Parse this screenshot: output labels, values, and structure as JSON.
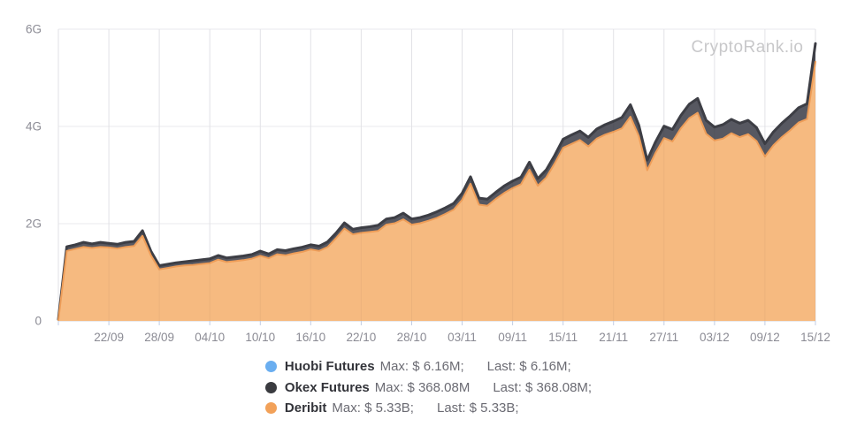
{
  "watermark": {
    "text": "CryptoRank.io"
  },
  "legend": {
    "items": [
      {
        "name": "Huobi Futures",
        "max_text": "Max: $ 6.16M;",
        "last_text": "Last: $ 6.16M;",
        "color": "#6aaef0"
      },
      {
        "name": "Okex Futures",
        "max_text": "Max: $ 368.08M",
        "last_text": "Last: $ 368.08M;",
        "color": "#3a3b40"
      },
      {
        "name": "Deribit",
        "max_text": "Max: $ 5.33B;",
        "last_text": "Last: $ 5.33B;",
        "color": "#f2a159"
      }
    ]
  },
  "chart_data": {
    "type": "area",
    "stacked": true,
    "title": "",
    "xlabel": "",
    "ylabel": "",
    "unit": "USD (G = billions)",
    "grid": true,
    "legend_position": "bottom",
    "x_tick_labels": [
      "22/09",
      "28/09",
      "04/10",
      "10/10",
      "16/10",
      "22/10",
      "28/10",
      "03/11",
      "09/11",
      "15/11",
      "21/11",
      "27/11",
      "03/12",
      "09/12",
      "15/12"
    ],
    "y_tick_labels": [
      "0",
      "2G",
      "4G",
      "6G"
    ],
    "y_tick_values": [
      0,
      2,
      4,
      6
    ],
    "ylim": [
      0,
      6.6
    ],
    "series": [
      {
        "name": "Huobi Futures",
        "color": "#6aaef0",
        "max": "$ 6.16M",
        "last": "$ 6.16M",
        "approx_constant_value": 0.006
      },
      {
        "name": "Okex Futures",
        "color": "#575861",
        "stroke": "#3d3e45",
        "max": "$ 368.08M",
        "last": "$ 368.08M",
        "values": [
          0.005,
          0.08,
          0.08,
          0.09,
          0.08,
          0.09,
          0.08,
          0.08,
          0.09,
          0.09,
          0.1,
          0.08,
          0.07,
          0.07,
          0.07,
          0.07,
          0.08,
          0.08,
          0.08,
          0.08,
          0.08,
          0.08,
          0.08,
          0.08,
          0.09,
          0.08,
          0.09,
          0.09,
          0.09,
          0.09,
          0.09,
          0.09,
          0.1,
          0.1,
          0.11,
          0.1,
          0.1,
          0.1,
          0.11,
          0.11,
          0.11,
          0.12,
          0.11,
          0.11,
          0.11,
          0.12,
          0.12,
          0.12,
          0.13,
          0.14,
          0.13,
          0.13,
          0.13,
          0.14,
          0.14,
          0.14,
          0.15,
          0.14,
          0.15,
          0.16,
          0.17,
          0.18,
          0.18,
          0.18,
          0.19,
          0.2,
          0.21,
          0.22,
          0.24,
          0.22,
          0.2,
          0.22,
          0.24,
          0.24,
          0.26,
          0.28,
          0.29,
          0.27,
          0.27,
          0.28,
          0.28,
          0.28,
          0.28,
          0.27,
          0.26,
          0.27,
          0.28,
          0.29,
          0.3,
          0.31,
          0.37
        ]
      },
      {
        "name": "Deribit",
        "color": "#f6ba80",
        "stroke": "#ee9d58",
        "max": "$ 5.33B",
        "last": "$ 5.33B",
        "values": [
          0.02,
          1.44,
          1.48,
          1.52,
          1.5,
          1.52,
          1.51,
          1.49,
          1.52,
          1.54,
          1.75,
          1.35,
          1.06,
          1.09,
          1.12,
          1.14,
          1.15,
          1.17,
          1.19,
          1.26,
          1.21,
          1.23,
          1.25,
          1.28,
          1.34,
          1.29,
          1.37,
          1.35,
          1.39,
          1.42,
          1.47,
          1.44,
          1.52,
          1.7,
          1.9,
          1.78,
          1.81,
          1.83,
          1.85,
          1.98,
          2.01,
          2.09,
          1.98,
          2.01,
          2.06,
          2.12,
          2.2,
          2.29,
          2.49,
          2.82,
          2.39,
          2.37,
          2.51,
          2.63,
          2.73,
          2.81,
          3.11,
          2.78,
          2.95,
          3.24,
          3.56,
          3.64,
          3.72,
          3.59,
          3.75,
          3.83,
          3.89,
          3.96,
          4.2,
          3.8,
          3.1,
          3.46,
          3.76,
          3.69,
          3.96,
          4.17,
          4.28,
          3.85,
          3.71,
          3.75,
          3.86,
          3.78,
          3.84,
          3.7,
          3.38,
          3.61,
          3.78,
          3.92,
          4.08,
          4.15,
          5.33
        ]
      }
    ]
  }
}
